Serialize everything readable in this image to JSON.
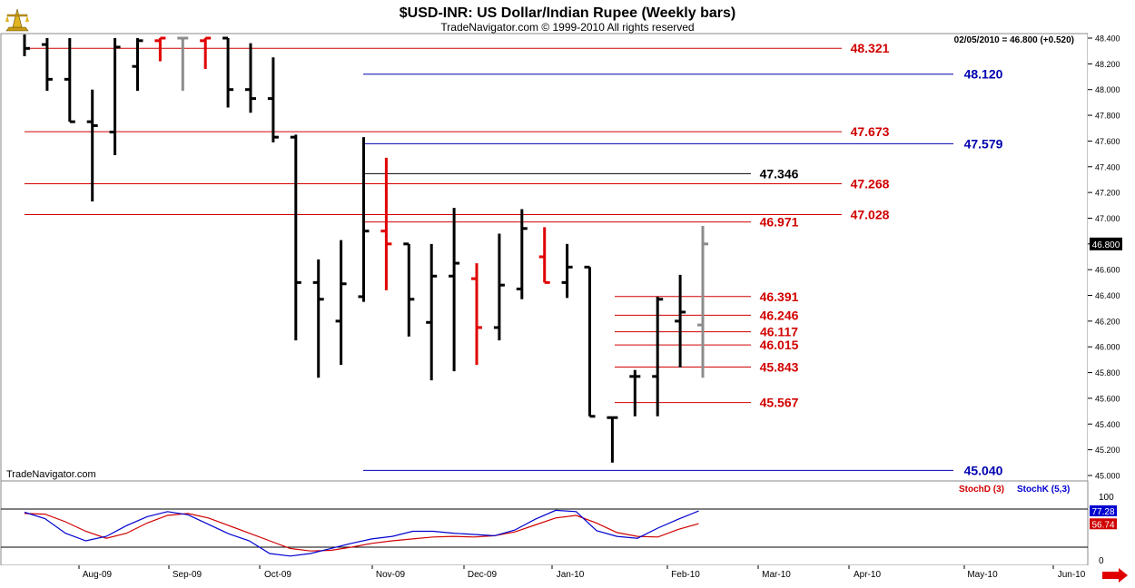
{
  "header": {
    "title": "$USD-INR:  US Dollar/Indian Rupee  (Weekly bars)",
    "subtitle": "TradeNavigator.com © 1999-2010 All rights reserved",
    "quote": "02/05/2010 = 46.800 (+0.520)",
    "watermark": "TradeNavigator.com"
  },
  "chart_data": [
    {
      "type": "ohlc",
      "title": "$USD-INR:  US Dollar/Indian Rupee  (Weekly bars)",
      "ylim": [
        44.95,
        48.45
      ],
      "y_ticks": [
        "48.400",
        "48.200",
        "48.000",
        "47.800",
        "47.600",
        "47.400",
        "47.200",
        "47.000",
        "46.800",
        "46.600",
        "46.400",
        "46.200",
        "46.000",
        "45.800",
        "45.600",
        "45.400",
        "45.200",
        "45.000"
      ],
      "x_ticks": [
        "Aug-09",
        "Sep-09",
        "Oct-09",
        "Nov-09",
        "Dec-09",
        "Jan-10",
        "Feb-10",
        "Mar-10",
        "Apr-10",
        "May-10",
        "Jun-10"
      ],
      "last_price": "46.800",
      "bars": [
        {
          "o": 48.48,
          "h": 48.55,
          "l": 48.26,
          "c": 48.32,
          "color": "black"
        },
        {
          "o": 48.35,
          "h": 48.4,
          "l": 47.99,
          "c": 48.08,
          "color": "black"
        },
        {
          "o": 48.08,
          "h": 48.4,
          "l": 47.75,
          "c": 47.75,
          "color": "black"
        },
        {
          "o": 47.75,
          "h": 48.0,
          "l": 47.13,
          "c": 47.72,
          "color": "black"
        },
        {
          "o": 47.67,
          "h": 48.4,
          "l": 47.49,
          "c": 48.33,
          "color": "black"
        },
        {
          "o": 48.18,
          "h": 48.4,
          "l": 47.99,
          "c": 48.38,
          "color": "black"
        },
        {
          "o": 48.38,
          "h": 48.4,
          "l": 48.22,
          "c": 48.4,
          "color": "red"
        },
        {
          "o": 48.4,
          "h": 48.4,
          "l": 47.99,
          "c": 48.4,
          "color": "gray"
        },
        {
          "o": 48.38,
          "h": 48.4,
          "l": 48.16,
          "c": 48.4,
          "color": "red"
        },
        {
          "o": 48.4,
          "h": 48.4,
          "l": 47.86,
          "c": 48.0,
          "color": "black"
        },
        {
          "o": 48.0,
          "h": 48.36,
          "l": 47.82,
          "c": 47.93,
          "color": "black"
        },
        {
          "o": 47.93,
          "h": 48.25,
          "l": 47.59,
          "c": 47.63,
          "color": "black"
        },
        {
          "o": 47.63,
          "h": 47.65,
          "l": 46.05,
          "c": 46.5,
          "color": "black"
        },
        {
          "o": 46.5,
          "h": 46.68,
          "l": 45.76,
          "c": 46.37,
          "color": "black"
        },
        {
          "o": 46.2,
          "h": 46.83,
          "l": 45.86,
          "c": 46.49,
          "color": "black"
        },
        {
          "o": 46.39,
          "h": 47.63,
          "l": 46.35,
          "c": 46.9,
          "color": "black"
        },
        {
          "o": 46.9,
          "h": 47.47,
          "l": 46.44,
          "c": 46.8,
          "color": "red"
        },
        {
          "o": 46.8,
          "h": 46.8,
          "l": 46.08,
          "c": 46.37,
          "color": "black"
        },
        {
          "o": 46.19,
          "h": 46.8,
          "l": 45.74,
          "c": 46.55,
          "color": "black"
        },
        {
          "o": 46.55,
          "h": 47.08,
          "l": 45.81,
          "c": 46.65,
          "color": "black"
        },
        {
          "o": 46.53,
          "h": 46.65,
          "l": 45.86,
          "c": 46.15,
          "color": "red"
        },
        {
          "o": 46.15,
          "h": 46.88,
          "l": 46.05,
          "c": 46.48,
          "color": "black"
        },
        {
          "o": 46.45,
          "h": 47.07,
          "l": 46.37,
          "c": 46.92,
          "color": "black"
        },
        {
          "o": 46.7,
          "h": 46.93,
          "l": 46.5,
          "c": 46.5,
          "color": "red"
        },
        {
          "o": 46.5,
          "h": 46.8,
          "l": 46.38,
          "c": 46.62,
          "color": "black"
        },
        {
          "o": 46.62,
          "h": 46.62,
          "l": 45.46,
          "c": 45.46,
          "color": "black"
        },
        {
          "o": 45.45,
          "h": 45.45,
          "l": 45.1,
          "c": 45.45,
          "color": "black"
        },
        {
          "o": 45.77,
          "h": 45.82,
          "l": 45.46,
          "c": 45.77,
          "color": "black"
        },
        {
          "o": 45.77,
          "h": 46.39,
          "l": 45.46,
          "c": 46.37,
          "color": "black"
        },
        {
          "o": 46.2,
          "h": 46.56,
          "l": 45.84,
          "c": 46.27,
          "color": "black"
        },
        {
          "o": 46.17,
          "h": 46.94,
          "l": 45.76,
          "c": 46.8,
          "color": "gray"
        }
      ],
      "levels": [
        {
          "value": "48.321",
          "color": "#d10000",
          "span": "wide"
        },
        {
          "value": "48.120",
          "color": "#0000b0",
          "span": "oct-right"
        },
        {
          "value": "47.673",
          "color": "#d10000",
          "span": "wide"
        },
        {
          "value": "47.579",
          "color": "#0000b0",
          "span": "oct-right"
        },
        {
          "value": "47.346",
          "color": "#000000",
          "span": "oct-mid"
        },
        {
          "value": "47.268",
          "color": "#d10000",
          "span": "wide"
        },
        {
          "value": "47.028",
          "color": "#d10000",
          "span": "wide"
        },
        {
          "value": "46.971",
          "color": "#d10000",
          "span": "oct-mid"
        },
        {
          "value": "46.391",
          "color": "#d10000",
          "span": "jan"
        },
        {
          "value": "46.246",
          "color": "#d10000",
          "span": "jan"
        },
        {
          "value": "46.117",
          "color": "#d10000",
          "span": "jan"
        },
        {
          "value": "46.015",
          "color": "#d10000",
          "span": "jan"
        },
        {
          "value": "45.843",
          "color": "#d10000",
          "span": "jan"
        },
        {
          "value": "45.567",
          "color": "#d10000",
          "span": "jan"
        },
        {
          "value": "45.040",
          "color": "#0000b0",
          "span": "oct-right"
        }
      ]
    },
    {
      "type": "line",
      "title": "",
      "ylim": [
        0,
        100
      ],
      "y_ticks": [
        "100",
        "0"
      ],
      "reference_lines": [
        80,
        20
      ],
      "legend": [
        "StochD (3)",
        "StochK (5,3)"
      ],
      "series": [
        {
          "name": "StochD (3)",
          "color": "#d00000",
          "last": "56.74",
          "values": [
            73,
            72,
            60,
            45,
            34,
            42,
            58,
            70,
            73,
            66,
            54,
            42,
            30,
            18,
            14,
            15,
            20,
            26,
            30,
            33,
            36,
            37,
            36,
            38,
            44,
            55,
            66,
            70,
            58,
            43,
            37,
            36,
            48,
            57
          ]
        },
        {
          "name": "StochK (5,3)",
          "color": "#0000d0",
          "last": "77.28",
          "values": [
            75,
            65,
            42,
            30,
            37,
            54,
            68,
            76,
            71,
            56,
            41,
            30,
            10,
            6,
            10,
            18,
            26,
            33,
            37,
            45,
            45,
            42,
            40,
            38,
            47,
            64,
            78,
            76,
            46,
            37,
            34,
            50,
            64,
            77
          ]
        }
      ]
    }
  ]
}
